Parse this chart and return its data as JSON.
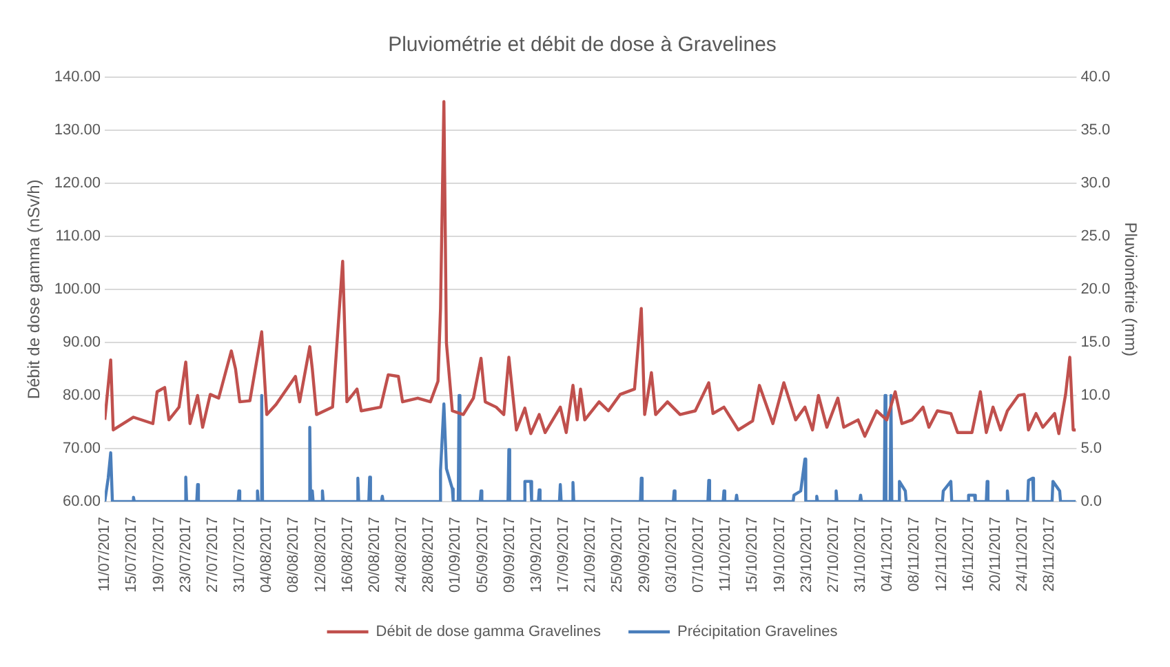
{
  "chart_data": {
    "type": "line",
    "title": "Pluviométrie et débit de dose à Gravelines",
    "ylabel": "Débit de dose gamma (nSv/h)",
    "y2label": "Pluviométrie (mm)",
    "xlim": [
      "2017-07-11",
      "2017-12-02"
    ],
    "xticks": [
      {
        "value": "2017-07-11",
        "label": "11/07/2017"
      },
      {
        "value": "2017-07-15",
        "label": "15/07/2017"
      },
      {
        "value": "2017-07-19",
        "label": "19/07/2017"
      },
      {
        "value": "2017-07-23",
        "label": "23/07/2017"
      },
      {
        "value": "2017-07-27",
        "label": "27/07/2017"
      },
      {
        "value": "2017-07-31",
        "label": "31/07/2017"
      },
      {
        "value": "2017-08-04",
        "label": "04/08/2017"
      },
      {
        "value": "2017-08-08",
        "label": "08/08/2017"
      },
      {
        "value": "2017-08-12",
        "label": "12/08/2017"
      },
      {
        "value": "2017-08-16",
        "label": "16/08/2017"
      },
      {
        "value": "2017-08-20",
        "label": "20/08/2017"
      },
      {
        "value": "2017-08-24",
        "label": "24/08/2017"
      },
      {
        "value": "2017-08-28",
        "label": "28/08/2017"
      },
      {
        "value": "2017-09-01",
        "label": "01/09/2017"
      },
      {
        "value": "2017-09-05",
        "label": "05/09/2017"
      },
      {
        "value": "2017-09-09",
        "label": "09/09/2017"
      },
      {
        "value": "2017-09-13",
        "label": "13/09/2017"
      },
      {
        "value": "2017-09-17",
        "label": "17/09/2017"
      },
      {
        "value": "2017-09-21",
        "label": "21/09/2017"
      },
      {
        "value": "2017-09-25",
        "label": "25/09/2017"
      },
      {
        "value": "2017-09-29",
        "label": "29/09/2017"
      },
      {
        "value": "2017-10-03",
        "label": "03/10/2017"
      },
      {
        "value": "2017-10-07",
        "label": "07/10/2017"
      },
      {
        "value": "2017-10-11",
        "label": "11/10/2017"
      },
      {
        "value": "2017-10-15",
        "label": "15/10/2017"
      },
      {
        "value": "2017-10-19",
        "label": "19/10/2017"
      },
      {
        "value": "2017-10-23",
        "label": "23/10/2017"
      },
      {
        "value": "2017-10-27",
        "label": "27/10/2017"
      },
      {
        "value": "2017-10-31",
        "label": "31/10/2017"
      },
      {
        "value": "2017-11-04",
        "label": "04/11/2017"
      },
      {
        "value": "2017-11-08",
        "label": "08/11/2017"
      },
      {
        "value": "2017-11-12",
        "label": "12/11/2017"
      },
      {
        "value": "2017-11-16",
        "label": "16/11/2017"
      },
      {
        "value": "2017-11-20",
        "label": "20/11/2017"
      },
      {
        "value": "2017-11-24",
        "label": "24/11/2017"
      },
      {
        "value": "2017-11-28",
        "label": "28/11/2017"
      }
    ],
    "ylim": [
      60,
      140
    ],
    "yticks": [
      {
        "value": 60,
        "label": "60.00"
      },
      {
        "value": 70,
        "label": "70.00"
      },
      {
        "value": 80,
        "label": "80.00"
      },
      {
        "value": 90,
        "label": "90.00"
      },
      {
        "value": 100,
        "label": "100.00"
      },
      {
        "value": 110,
        "label": "110.00"
      },
      {
        "value": 120,
        "label": "120.00"
      },
      {
        "value": 130,
        "label": "130.00"
      },
      {
        "value": 140,
        "label": "140.00"
      }
    ],
    "y2lim": [
      0,
      40
    ],
    "y2ticks": [
      {
        "value": 0,
        "label": "0.0"
      },
      {
        "value": 5,
        "label": "5.0"
      },
      {
        "value": 10,
        "label": "10.0"
      },
      {
        "value": 15,
        "label": "15.0"
      },
      {
        "value": 20,
        "label": "20.0"
      },
      {
        "value": 25,
        "label": "25.0"
      },
      {
        "value": 30,
        "label": "30.0"
      },
      {
        "value": 35,
        "label": "35.0"
      },
      {
        "value": 40,
        "label": "40.0"
      }
    ],
    "grid": "y",
    "legend": "bottom",
    "marker": "none",
    "line_style": "solid",
    "series": [
      {
        "name": "Débit de dose gamma Gravelines",
        "type": "line",
        "color": "#c0504d",
        "x": [
          "2017-07-11T00:00",
          "2017-07-11T21:00",
          "2017-07-12T06:00",
          "2017-07-15T06:00",
          "2017-07-18T03:00",
          "2017-07-18T18:00",
          "2017-07-19T21:00",
          "2017-07-20T12:00",
          "2017-07-22T00:00",
          "2017-07-23T00:00",
          "2017-07-23T15:00",
          "2017-07-24T18:00",
          "2017-07-25T12:00",
          "2017-07-26T15:00",
          "2017-07-27T21:00",
          "2017-07-29T18:00",
          "2017-07-30T09:00",
          "2017-07-31T00:00",
          "2017-08-01T12:00",
          "2017-08-03T06:00",
          "2017-08-04T00:00",
          "2017-08-05T09:00",
          "2017-08-08T06:00",
          "2017-08-08T21:00",
          "2017-08-10T09:00",
          "2017-08-10T18:00",
          "2017-08-11T09:00",
          "2017-08-13T18:00",
          "2017-08-15T06:00",
          "2017-08-15T21:00",
          "2017-08-17T09:00",
          "2017-08-18T00:00",
          "2017-08-20T21:00",
          "2017-08-22T00:00",
          "2017-08-23T12:00",
          "2017-08-24T03:00",
          "2017-08-26T09:00",
          "2017-08-28T06:00",
          "2017-08-29T09:00",
          "2017-08-29T18:00",
          "2017-08-30T06:00",
          "2017-08-30T15:00",
          "2017-08-31T12:00",
          "2017-09-02T03:00",
          "2017-09-03T15:00",
          "2017-09-04T18:00",
          "2017-09-05T09:00",
          "2017-09-07T00:00",
          "2017-09-08T03:00",
          "2017-09-08T21:00",
          "2017-09-10T00:00",
          "2017-09-11T06:00",
          "2017-09-12T03:00",
          "2017-09-13T09:00",
          "2017-09-14T06:00",
          "2017-09-16T12:00",
          "2017-09-17T09:00",
          "2017-09-18T09:00",
          "2017-09-19T00:00",
          "2017-09-19T12:00",
          "2017-09-20T03:00",
          "2017-09-22T06:00",
          "2017-09-23T15:00",
          "2017-09-25T09:00",
          "2017-09-27T12:00",
          "2017-09-28T12:00",
          "2017-09-29T00:00",
          "2017-09-30T00:00",
          "2017-09-30T15:00",
          "2017-10-02T09:00",
          "2017-10-04T06:00",
          "2017-10-06T12:00",
          "2017-10-08T12:00",
          "2017-10-09T03:00",
          "2017-10-10T18:00",
          "2017-10-12T21:00",
          "2017-10-15T00:00",
          "2017-10-16T00:00",
          "2017-10-18T00:00",
          "2017-10-19T15:00",
          "2017-10-21T09:00",
          "2017-10-22T18:00",
          "2017-10-23T21:00",
          "2017-10-24T18:00",
          "2017-10-26T00:00",
          "2017-10-27T15:00",
          "2017-10-28T12:00",
          "2017-10-30T15:00",
          "2017-10-31T15:00",
          "2017-11-02T09:00",
          "2017-11-03T21:00",
          "2017-11-05T03:00",
          "2017-11-06T03:00",
          "2017-11-07T15:00",
          "2017-11-09T06:00",
          "2017-11-10T03:00",
          "2017-11-11T09:00",
          "2017-11-13T09:00",
          "2017-11-14T09:00",
          "2017-11-16T12:00",
          "2017-11-17T18:00",
          "2017-11-18T15:00",
          "2017-11-19T15:00",
          "2017-11-20T18:00",
          "2017-11-21T18:00",
          "2017-11-23T09:00",
          "2017-11-24T06:00",
          "2017-11-24T21:00",
          "2017-11-26T00:00",
          "2017-11-27T00:00",
          "2017-11-28T18:00",
          "2017-11-29T09:00",
          "2017-11-30T09:00",
          "2017-12-01T00:00",
          "2017-12-01T12:00",
          "2017-12-01T21:00"
        ],
        "values": [
          75.4,
          86.7,
          73.5,
          75.9,
          74.7,
          80.7,
          81.5,
          75.4,
          77.8,
          86.3,
          74.7,
          80,
          74,
          80.2,
          79.5,
          88.4,
          85,
          78.8,
          79,
          92,
          76.4,
          78.3,
          83.6,
          78.8,
          89.2,
          85,
          76.4,
          77.8,
          105.3,
          78.8,
          81.2,
          77.1,
          77.8,
          83.9,
          83.6,
          78.8,
          79.5,
          78.8,
          82.7,
          96.4,
          135.4,
          89.9,
          77.1,
          76.4,
          79.5,
          87,
          78.8,
          77.8,
          76.4,
          87.2,
          73.5,
          77.6,
          72.8,
          76.4,
          73,
          77.8,
          73,
          81.9,
          75.4,
          81.2,
          75.4,
          78.8,
          77.1,
          80.2,
          81.2,
          96.4,
          76.4,
          84.3,
          76.4,
          78.8,
          76.4,
          77.1,
          82.4,
          76.6,
          77.8,
          73.5,
          75.2,
          81.9,
          74.7,
          82.4,
          75.4,
          77.8,
          73.5,
          80,
          74,
          79.5,
          74,
          75.4,
          72.3,
          77.1,
          75.4,
          80.7,
          74.7,
          75.4,
          77.8,
          74,
          77.1,
          76.6,
          73,
          73,
          80.7,
          73,
          77.8,
          73.5,
          77.1,
          80,
          80.2,
          73.5,
          76.6,
          74,
          76.6,
          72.8,
          80.2,
          87.2,
          73.5,
          73.5
        ]
      },
      {
        "name": "Précipitation Gravelines",
        "type": "line",
        "axis": "y2",
        "color": "#4a7ebb",
        "x": [
          "2017-07-11T00:00",
          "2017-07-11T12:00",
          "2017-07-11T21:00",
          "2017-07-12T03:00",
          "2017-07-15T03:00",
          "2017-07-15T06:00",
          "2017-07-15T09:00",
          "2017-07-22T21:00",
          "2017-07-23T00:00",
          "2017-07-23T03:00",
          "2017-07-24T15:00",
          "2017-07-24T18:00",
          "2017-07-24T21:00",
          "2017-07-30T18:00",
          "2017-07-30T21:00",
          "2017-07-31T00:00",
          "2017-08-02T12:00",
          "2017-08-02T15:00",
          "2017-08-02T18:00",
          "2017-08-03T03:00",
          "2017-08-03T06:00",
          "2017-08-03T09:00",
          "2017-08-10T06:00",
          "2017-08-10T09:00",
          "2017-08-10T12:00",
          "2017-08-10T15:00",
          "2017-08-10T18:00",
          "2017-08-10T21:00",
          "2017-08-12T03:00",
          "2017-08-12T06:00",
          "2017-08-12T09:00",
          "2017-08-17T09:00",
          "2017-08-17T12:00",
          "2017-08-17T15:00",
          "2017-08-19T03:00",
          "2017-08-19T06:00",
          "2017-08-19T09:00",
          "2017-08-21T00:00",
          "2017-08-21T03:00",
          "2017-08-21T06:00",
          "2017-08-29T15:00",
          "2017-08-29T18:00",
          "2017-08-30T06:00",
          "2017-08-30T15:00",
          "2017-08-31T12:00",
          "2017-08-31T15:00",
          "2017-09-01T09:00",
          "2017-09-01T12:00",
          "2017-09-01T15:00",
          "2017-09-04T15:00",
          "2017-09-04T18:00",
          "2017-09-04T21:00",
          "2017-09-08T18:00",
          "2017-09-08T21:00",
          "2017-09-09T00:00",
          "2017-09-11T03:00",
          "2017-09-11T06:00",
          "2017-09-12T03:00",
          "2017-09-12T06:00",
          "2017-09-13T06:00",
          "2017-09-13T09:00",
          "2017-09-13T12:00",
          "2017-09-16T09:00",
          "2017-09-16T12:00",
          "2017-09-16T15:00",
          "2017-09-18T06:00",
          "2017-09-18T09:00",
          "2017-09-18T12:00",
          "2017-09-28T09:00",
          "2017-09-28T12:00",
          "2017-09-28T15:00",
          "2017-10-03T06:00",
          "2017-10-03T09:00",
          "2017-10-03T12:00",
          "2017-10-08T09:00",
          "2017-10-08T12:00",
          "2017-10-08T15:00",
          "2017-10-10T15:00",
          "2017-10-10T18:00",
          "2017-10-10T21:00",
          "2017-10-12T12:00",
          "2017-10-12T15:00",
          "2017-10-12T18:00",
          "2017-10-21T00:00",
          "2017-10-21T03:00",
          "2017-10-22T03:00",
          "2017-10-22T18:00",
          "2017-10-22T21:00",
          "2017-10-24T09:00",
          "2017-10-24T12:00",
          "2017-10-24T15:00",
          "2017-10-27T06:00",
          "2017-10-27T09:00",
          "2017-10-27T12:00",
          "2017-10-30T21:00",
          "2017-10-31T00:00",
          "2017-10-31T03:00",
          "2017-11-03T12:00",
          "2017-11-03T15:00",
          "2017-11-03T18:00",
          "2017-11-04T09:00",
          "2017-11-04T12:00",
          "2017-11-04T15:00",
          "2017-11-05T15:00",
          "2017-11-05T18:00",
          "2017-11-06T15:00",
          "2017-11-06T18:00",
          "2017-11-12T03:00",
          "2017-11-12T06:00",
          "2017-11-13T09:00",
          "2017-11-13T12:00",
          "2017-11-15T21:00",
          "2017-11-16T00:00",
          "2017-11-16T21:00",
          "2017-11-17T00:00",
          "2017-11-18T15:00",
          "2017-11-18T18:00",
          "2017-11-18T21:00",
          "2017-11-21T15:00",
          "2017-11-21T18:00",
          "2017-11-21T21:00",
          "2017-11-24T18:00",
          "2017-11-24T21:00",
          "2017-11-25T12:00",
          "2017-11-25T15:00",
          "2017-11-28T09:00",
          "2017-11-28T12:00",
          "2017-11-29T12:00",
          "2017-11-29T15:00",
          "2017-12-01T21:00"
        ],
        "values": [
          0,
          2.2,
          4.6,
          0,
          0,
          0.4,
          0,
          0,
          2.3,
          0,
          0,
          1.6,
          0,
          0,
          1.0,
          0,
          0,
          1.0,
          0,
          0,
          10.0,
          0,
          0,
          7.0,
          0,
          0,
          1.0,
          0,
          0,
          1.0,
          0,
          0,
          2.2,
          0,
          0,
          2.3,
          0,
          0,
          0.5,
          0,
          0,
          2.9,
          9.2,
          3.1,
          1.2,
          0,
          0,
          10.0,
          0,
          0,
          1.0,
          0,
          0,
          4.9,
          0,
          0,
          1.9,
          1.9,
          0,
          0,
          1.1,
          0,
          0,
          1.6,
          0,
          0,
          1.8,
          0,
          0,
          2.2,
          0,
          0,
          1.0,
          0,
          0,
          2.0,
          0,
          0,
          1.0,
          0,
          0,
          0.6,
          0,
          0,
          0.6,
          1.0,
          4.0,
          0,
          0,
          0.5,
          0,
          0,
          1.0,
          0,
          0,
          0.6,
          0,
          0,
          10.0,
          0,
          0,
          10.0,
          0,
          0,
          1.9,
          1.0,
          0,
          0,
          1.0,
          1.9,
          0,
          0,
          0.6,
          0.6,
          0,
          0,
          1.9,
          0,
          0,
          1.0,
          0,
          0,
          2.0,
          2.2,
          0,
          0,
          1.9,
          1.0,
          0,
          0
        ]
      }
    ]
  }
}
